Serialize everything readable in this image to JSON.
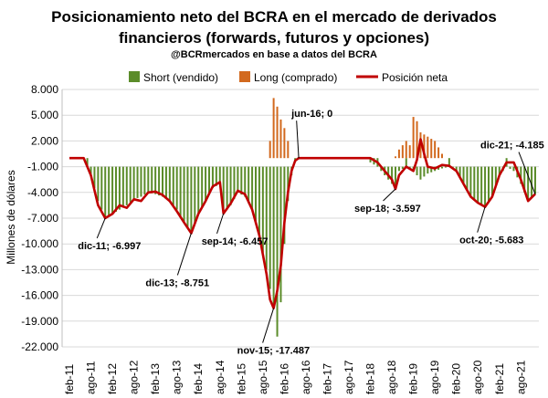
{
  "title_line1": "Posicionamiento neto del BCRA en el mercado de derivados",
  "title_line2": "financieros (forwards, futuros y opciones)",
  "subtitle": "@BCRmercados  en base a datos del BCRA",
  "colors": {
    "short": "#5b8c2a",
    "long": "#d2691e",
    "net": "#c00000",
    "grid": "#d9d9d9"
  },
  "chart_data": {
    "type": "bar",
    "ylabel": "Millones de dólares",
    "ylim": [
      -22000,
      8000
    ],
    "yticks": [
      "8.000",
      "5.000",
      "2.000",
      "-1.000",
      "-4.000",
      "-7.000",
      "-10.000",
      "-13.000",
      "-16.000",
      "-19.000",
      "-22.000"
    ],
    "ytick_values": [
      8000,
      5000,
      2000,
      -1000,
      -4000,
      -7000,
      -10000,
      -13000,
      -16000,
      -19000,
      -22000
    ],
    "xticks": [
      "feb-11",
      "ago-11",
      "feb-12",
      "ago-12",
      "feb-13",
      "ago-13",
      "feb-14",
      "ago-14",
      "feb-15",
      "ago-15",
      "feb-16",
      "ago-16",
      "feb-17",
      "ago-17",
      "feb-18",
      "ago-18",
      "feb-19",
      "ago-19",
      "feb-20",
      "ago-20",
      "feb-21",
      "ago-21"
    ],
    "legend": [
      "Short (vendido)",
      "Long (comprado)",
      "Posición neta"
    ],
    "legend_position": "top",
    "series": [
      {
        "name": "Short (vendido)",
        "points": [
          [
            "feb-11",
            0
          ],
          [
            "jun-11",
            0
          ],
          [
            "ago-11",
            -2000
          ],
          [
            "oct-11",
            -5000
          ],
          [
            "dic-11",
            -7000
          ],
          [
            "feb-12",
            -6500
          ],
          [
            "abr-12",
            -6000
          ],
          [
            "jun-12",
            -5500
          ],
          [
            "ago-12",
            -4800
          ],
          [
            "oct-12",
            -4500
          ],
          [
            "dic-12",
            -4000
          ],
          [
            "feb-13",
            -4200
          ],
          [
            "abr-13",
            -4500
          ],
          [
            "jun-13",
            -5000
          ],
          [
            "ago-13",
            -6000
          ],
          [
            "oct-13",
            -7500
          ],
          [
            "dic-13",
            -8800
          ],
          [
            "feb-14",
            -6500
          ],
          [
            "abr-14",
            -5000
          ],
          [
            "jun-14",
            -3500
          ],
          [
            "ago-14",
            -3000
          ],
          [
            "sep-14",
            -6500
          ],
          [
            "nov-14",
            -5500
          ],
          [
            "ene-15",
            -4000
          ],
          [
            "mar-15",
            -4500
          ],
          [
            "may-15",
            -6000
          ],
          [
            "jul-15",
            -9000
          ],
          [
            "sep-15",
            -13000
          ],
          [
            "nov-15",
            -17500
          ],
          [
            "dic-15",
            -20800
          ],
          [
            "ene-16",
            -16800
          ],
          [
            "feb-16",
            -10000
          ],
          [
            "mar-16",
            -5000
          ],
          [
            "abr-16",
            -2000
          ],
          [
            "may-16",
            -500
          ],
          [
            "jun-16",
            0
          ],
          [
            "feb-18",
            -500
          ],
          [
            "abr-18",
            -1000
          ],
          [
            "jun-18",
            -2000
          ],
          [
            "ago-18",
            -3000
          ],
          [
            "sep-18",
            -3600
          ],
          [
            "oct-18",
            -1500
          ],
          [
            "dic-18",
            -1000
          ],
          [
            "feb-19",
            -1500
          ],
          [
            "abr-19",
            -2500
          ],
          [
            "jun-19",
            -1800
          ],
          [
            "ago-19",
            -1500
          ],
          [
            "oct-19",
            -1200
          ],
          [
            "dic-19",
            -1000
          ],
          [
            "feb-20",
            -1500
          ],
          [
            "abr-20",
            -3000
          ],
          [
            "jun-20",
            -4500
          ],
          [
            "ago-20",
            -5200
          ],
          [
            "oct-20",
            -5700
          ],
          [
            "dic-20",
            -4500
          ],
          [
            "feb-21",
            -2000
          ],
          [
            "abr-21",
            -1000
          ],
          [
            "jun-21",
            -1500
          ],
          [
            "ago-21",
            -3000
          ],
          [
            "oct-21",
            -5000
          ],
          [
            "dic-21",
            -4185
          ]
        ]
      },
      {
        "name": "Long (comprado)",
        "points": [
          [
            "oct-15",
            2000
          ],
          [
            "nov-15",
            7000
          ],
          [
            "dic-15",
            6000
          ],
          [
            "ene-16",
            4500
          ],
          [
            "feb-16",
            3500
          ],
          [
            "mar-16",
            2000
          ],
          [
            "abr-16",
            1000
          ],
          [
            "sep-18",
            200
          ],
          [
            "oct-18",
            1000
          ],
          [
            "dic-18",
            2000
          ],
          [
            "ene-19",
            1500
          ],
          [
            "feb-19",
            4800
          ],
          [
            "mar-19",
            4300
          ],
          [
            "abr-19",
            3000
          ],
          [
            "jun-19",
            2500
          ],
          [
            "ago-19",
            2000
          ],
          [
            "oct-19",
            500
          ]
        ]
      },
      {
        "name": "Posición neta",
        "points": [
          [
            "feb-11",
            0
          ],
          [
            "jun-11",
            0
          ],
          [
            "ago-11",
            -2000
          ],
          [
            "oct-11",
            -5500
          ],
          [
            "dic-11",
            -6997
          ],
          [
            "feb-12",
            -6500
          ],
          [
            "abr-12",
            -5500
          ],
          [
            "jun-12",
            -5800
          ],
          [
            "ago-12",
            -4800
          ],
          [
            "oct-12",
            -5000
          ],
          [
            "dic-12",
            -4000
          ],
          [
            "feb-13",
            -3900
          ],
          [
            "abr-13",
            -4300
          ],
          [
            "jun-13",
            -5000
          ],
          [
            "ago-13",
            -6200
          ],
          [
            "oct-13",
            -7500
          ],
          [
            "dic-13",
            -8751
          ],
          [
            "feb-14",
            -6500
          ],
          [
            "abr-14",
            -5000
          ],
          [
            "jun-14",
            -3300
          ],
          [
            "ago-14",
            -2800
          ],
          [
            "sep-14",
            -6457
          ],
          [
            "nov-14",
            -5300
          ],
          [
            "ene-15",
            -3800
          ],
          [
            "mar-15",
            -4200
          ],
          [
            "may-15",
            -6000
          ],
          [
            "jul-15",
            -9000
          ],
          [
            "sep-15",
            -13500
          ],
          [
            "oct-15",
            -16500
          ],
          [
            "nov-15",
            -17487
          ],
          [
            "dic-15",
            -15500
          ],
          [
            "ene-16",
            -12500
          ],
          [
            "feb-16",
            -7500
          ],
          [
            "mar-16",
            -4000
          ],
          [
            "abr-16",
            -1500
          ],
          [
            "may-16",
            -300
          ],
          [
            "jun-16",
            0
          ],
          [
            "feb-18",
            0
          ],
          [
            "abr-18",
            -500
          ],
          [
            "jun-18",
            -1500
          ],
          [
            "ago-18",
            -2500
          ],
          [
            "sep-18",
            -3597
          ],
          [
            "oct-18",
            -2000
          ],
          [
            "dic-18",
            -1000
          ],
          [
            "feb-19",
            -1500
          ],
          [
            "mar-19",
            -200
          ],
          [
            "abr-19",
            2200
          ],
          [
            "may-19",
            500
          ],
          [
            "jun-19",
            -1000
          ],
          [
            "ago-19",
            -1200
          ],
          [
            "oct-19",
            -800
          ],
          [
            "dic-19",
            -900
          ],
          [
            "feb-20",
            -1500
          ],
          [
            "abr-20",
            -3000
          ],
          [
            "jun-20",
            -4500
          ],
          [
            "ago-20",
            -5200
          ],
          [
            "oct-20",
            -5683
          ],
          [
            "dic-20",
            -4500
          ],
          [
            "feb-21",
            -2000
          ],
          [
            "abr-21",
            -500
          ],
          [
            "jun-21",
            -500
          ],
          [
            "ago-21",
            -2500
          ],
          [
            "oct-21",
            -5000
          ],
          [
            "dic-21",
            -4185
          ]
        ]
      }
    ],
    "annotations": [
      {
        "text": "dic-11; -6.997",
        "x": "dic-11",
        "y": -6997
      },
      {
        "text": "dic-13; -8.751",
        "x": "dic-13",
        "y": -8751
      },
      {
        "text": "sep-14; -6.457",
        "x": "sep-14",
        "y": -6457
      },
      {
        "text": "nov-15; -17.487",
        "x": "nov-15",
        "y": -17487
      },
      {
        "text": "jun-16; 0",
        "x": "jun-16",
        "y": 0
      },
      {
        "text": "sep-18; -3.597",
        "x": "sep-18",
        "y": -3597
      },
      {
        "text": "oct-20; -5.683",
        "x": "oct-20",
        "y": -5683
      },
      {
        "text": "dic-21; -4.185",
        "x": "dic-21",
        "y": -4185
      }
    ]
  }
}
